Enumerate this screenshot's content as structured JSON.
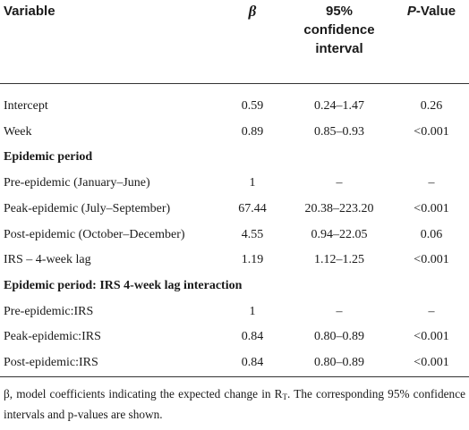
{
  "header": {
    "variable": "Variable",
    "beta": "β",
    "ci_line1": "95%",
    "ci_line2": "confidence",
    "ci_line3": "interval",
    "p_italic": "P",
    "p_rest": "-Value"
  },
  "rows": [
    {
      "label": "Intercept",
      "beta": "0.59",
      "ci": "0.24–1.47",
      "p": "0.26"
    },
    {
      "label": "Week",
      "beta": "0.89",
      "ci": "0.85–0.93",
      "p": "<0.001"
    },
    {
      "section": "Epidemic period"
    },
    {
      "label": "Pre-epidemic (January–June)",
      "beta": "1",
      "ci": "–",
      "p": "–"
    },
    {
      "label": "Peak-epidemic (July–September)",
      "beta": "67.44",
      "ci": "20.38–223.20",
      "p": "<0.001"
    },
    {
      "label": "Post-epidemic (October–December)",
      "beta": "4.55",
      "ci": "0.94–22.05",
      "p": "0.06"
    },
    {
      "label": "IRS – 4-week lag",
      "beta": "1.19",
      "ci": "1.12–1.25",
      "p": "<0.001"
    },
    {
      "section": "Epidemic period: IRS 4-week lag interaction"
    },
    {
      "label": "Pre-epidemic:IRS",
      "beta": "1",
      "ci": "–",
      "p": "–"
    },
    {
      "label": "Peak-epidemic:IRS",
      "beta": "0.84",
      "ci": "0.80–0.89",
      "p": "<0.001"
    },
    {
      "label": "Post-epidemic:IRS",
      "beta": "0.84",
      "ci": "0.80–0.89",
      "p": "<0.001"
    }
  ],
  "footnote": {
    "prefix": "β, model coefficients indicating the expected change in R",
    "subscript": "T",
    "suffix": ". The corresponding 95% confidence intervals and p-values are shown."
  }
}
